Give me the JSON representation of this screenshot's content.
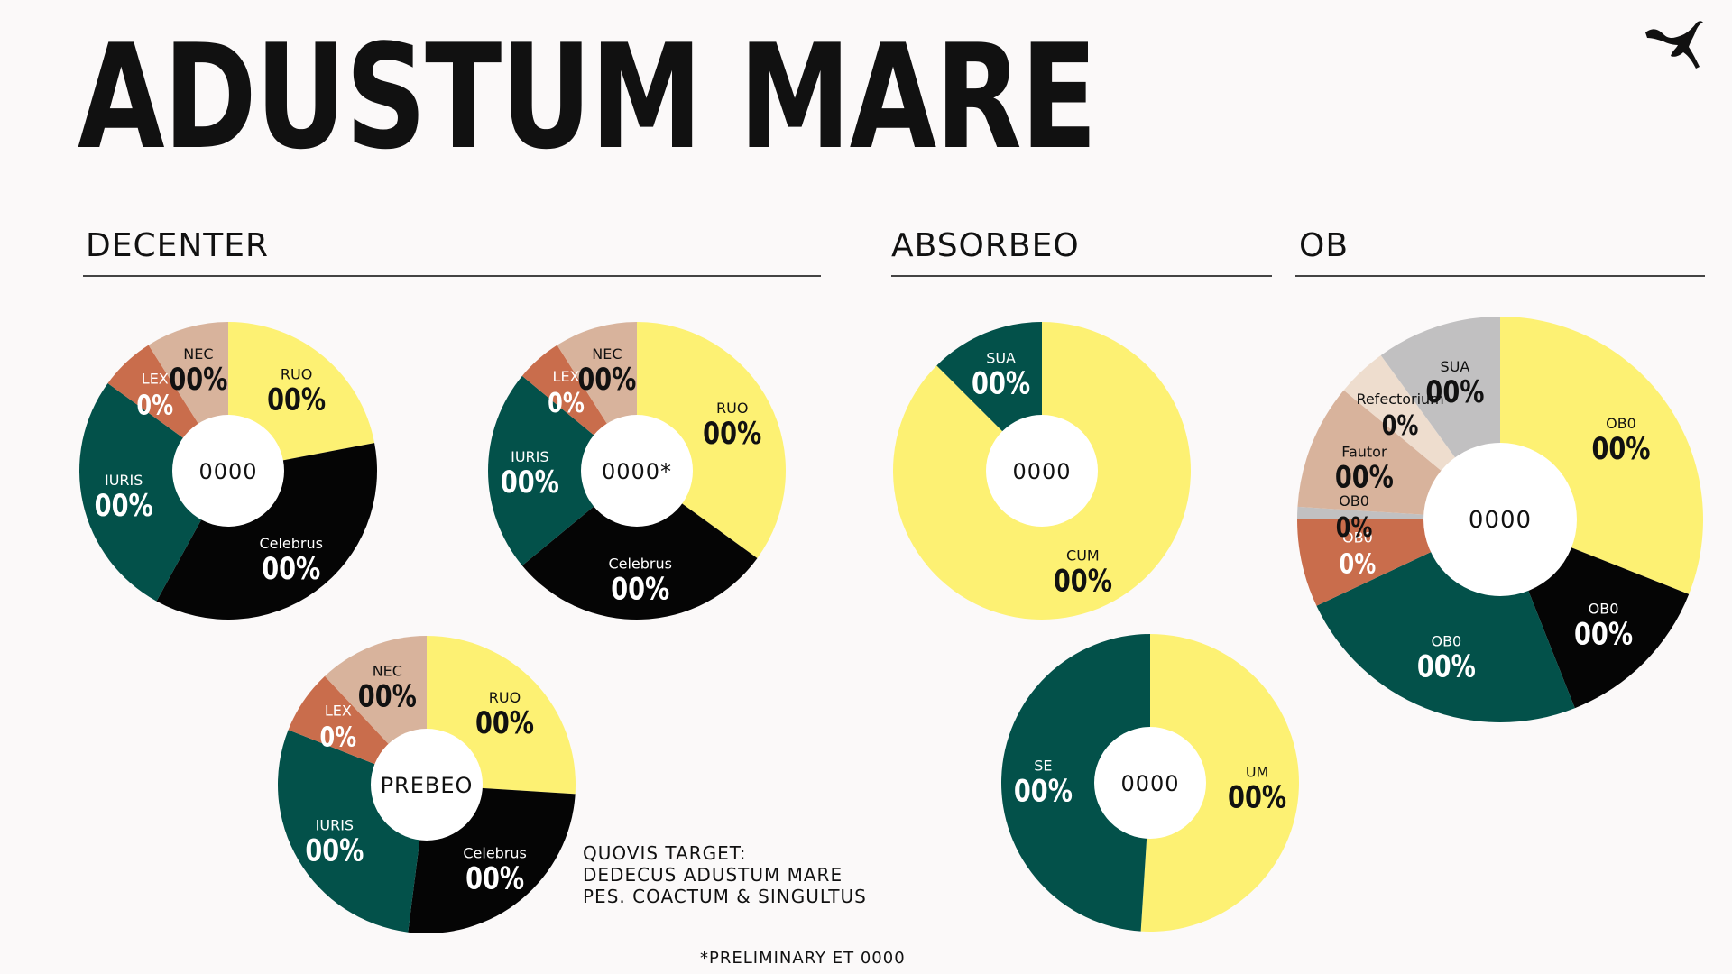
{
  "header": {
    "title": "ADUSTUM MARE",
    "logo_icon": "puma-logo-icon"
  },
  "sections": [
    {
      "key": "decenter",
      "label": "DECENTER"
    },
    {
      "key": "absorbeo",
      "label": "ABSORBEO"
    },
    {
      "key": "ob",
      "label": "OB"
    }
  ],
  "note": {
    "lines": [
      "QUOVIS TARGET:",
      "DEDECUS ADUSTUM MARE",
      "PES. COACTUM & SINGULTUS"
    ],
    "preliminary": "*PRELIMINARY ET 0000"
  },
  "colors": {
    "yellow": "#fdf173",
    "black": "#050505",
    "green": "#03514a",
    "rust": "#c96d4c",
    "tan": "#d8b39c",
    "peach": "#eeddce",
    "gray": "#c1c0c1"
  },
  "chart_data": [
    {
      "type": "pie",
      "section": "DECENTER",
      "center_label": "0000",
      "slices": [
        {
          "name": "RUO",
          "label": "00%",
          "value": 22,
          "color": "yellow"
        },
        {
          "name": "Celebrus",
          "label": "00%",
          "value": 36,
          "color": "black"
        },
        {
          "name": "IURIS",
          "label": "00%",
          "value": 27,
          "color": "green"
        },
        {
          "name": "LEX",
          "label": "0%",
          "value": 6,
          "color": "rust"
        },
        {
          "name": "NEC",
          "label": "00%",
          "value": 9,
          "color": "tan"
        }
      ]
    },
    {
      "type": "pie",
      "section": "DECENTER",
      "center_label": "0000*",
      "slices": [
        {
          "name": "RUO",
          "label": "00%",
          "value": 35,
          "color": "yellow"
        },
        {
          "name": "Celebrus",
          "label": "00%",
          "value": 29,
          "color": "black"
        },
        {
          "name": "IURIS",
          "label": "00%",
          "value": 22,
          "color": "green"
        },
        {
          "name": "LEX",
          "label": "0%",
          "value": 5,
          "color": "rust"
        },
        {
          "name": "NEC",
          "label": "00%",
          "value": 9,
          "color": "tan"
        }
      ]
    },
    {
      "type": "pie",
      "section": "DECENTER",
      "center_label": "PREBEO",
      "slices": [
        {
          "name": "RUO",
          "label": "00%",
          "value": 26,
          "color": "yellow"
        },
        {
          "name": "Celebrus",
          "label": "00%",
          "value": 26,
          "color": "black"
        },
        {
          "name": "IURIS",
          "label": "00%",
          "value": 29,
          "color": "green"
        },
        {
          "name": "LEX",
          "label": "0%",
          "value": 7,
          "color": "rust"
        },
        {
          "name": "NEC",
          "label": "00%",
          "value": 12,
          "color": "tan"
        }
      ]
    },
    {
      "type": "pie",
      "section": "ABSORBEO",
      "center_label": "0000",
      "slices": [
        {
          "name": "CUM",
          "label": "00%",
          "value": 87.5,
          "color": "yellow"
        },
        {
          "name": "SUA",
          "label": "00%",
          "value": 12.5,
          "color": "green"
        }
      ]
    },
    {
      "type": "pie",
      "section": "ABSORBEO",
      "center_label": "0000",
      "slices": [
        {
          "name": "UM",
          "label": "00%",
          "value": 51,
          "color": "yellow"
        },
        {
          "name": "SE",
          "label": "00%",
          "value": 49,
          "color": "green"
        }
      ]
    },
    {
      "type": "pie",
      "section": "OB",
      "center_label": "0000",
      "slices": [
        {
          "name": "OB0",
          "label": "00%",
          "value": 31,
          "color": "yellow"
        },
        {
          "name": "OB0",
          "label": "00%",
          "value": 13,
          "color": "black"
        },
        {
          "name": "OB0",
          "label": "00%",
          "value": 24,
          "color": "green"
        },
        {
          "name": "OB0",
          "label": "0%",
          "value": 7,
          "color": "rust"
        },
        {
          "name": "OB0",
          "label": "0%",
          "value": 1,
          "color": "gray"
        },
        {
          "name": "Fautor",
          "label": "00%",
          "value": 10,
          "color": "tan"
        },
        {
          "name": "Refectorium",
          "label": "0%",
          "value": 4,
          "color": "peach"
        },
        {
          "name": "SUA",
          "label": "00%",
          "value": 10,
          "color": "gray"
        }
      ]
    }
  ]
}
